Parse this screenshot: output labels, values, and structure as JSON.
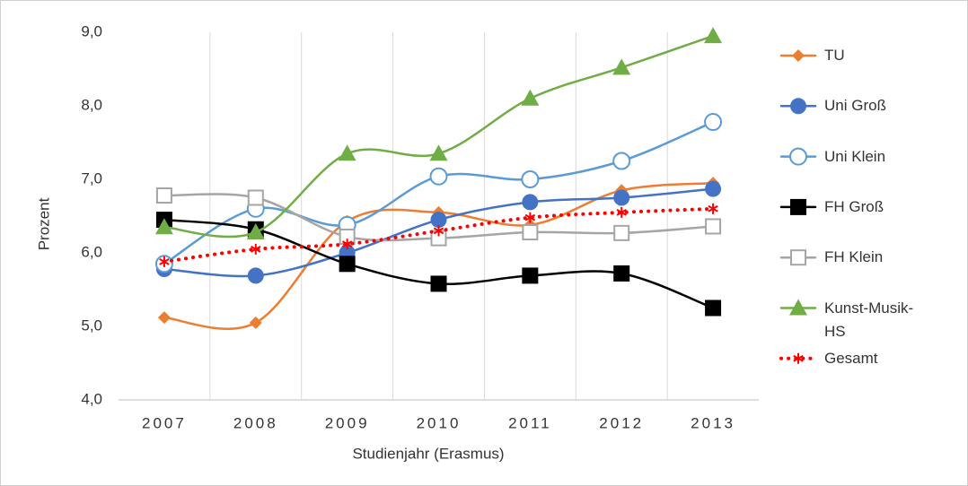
{
  "chart_data": {
    "type": "line",
    "x_label": "Studienjahr (Erasmus)",
    "y_label": "Prozent",
    "categories": [
      "2007",
      "2008",
      "2009",
      "2010",
      "2011",
      "2012",
      "2013"
    ],
    "ylim": [
      4,
      9
    ],
    "yticks": [
      {
        "value": 4,
        "label": "4,0"
      },
      {
        "value": 5,
        "label": "5,0"
      },
      {
        "value": 6,
        "label": "6,0"
      },
      {
        "value": 7,
        "label": "7,0"
      },
      {
        "value": 8,
        "label": "8,0"
      },
      {
        "value": 9,
        "label": "9,0"
      }
    ],
    "grid": true,
    "legend": "right",
    "series": [
      {
        "name": "TU",
        "color": "#ed7d31",
        "marker": "diamond",
        "values": [
          5.12,
          5.05,
          6.43,
          6.55,
          6.38,
          6.85,
          6.95
        ]
      },
      {
        "name": "Uni Groß",
        "color": "#4472c4",
        "marker": "circle",
        "values": [
          5.78,
          5.69,
          6.0,
          6.45,
          6.69,
          6.75,
          6.87
        ]
      },
      {
        "name": "Uni Klein",
        "color": "#5b9bd5",
        "marker": "open-circle",
        "values": [
          5.85,
          6.6,
          6.38,
          7.04,
          7.0,
          7.25,
          7.78
        ]
      },
      {
        "name": "FH Groß",
        "color": "#000000",
        "marker": "square",
        "values": [
          6.45,
          6.32,
          5.85,
          5.58,
          5.69,
          5.72,
          5.25
        ]
      },
      {
        "name": "FH Klein",
        "color": "#a5a5a5",
        "marker": "open-square",
        "values": [
          6.78,
          6.75,
          6.22,
          6.2,
          6.28,
          6.27,
          6.36
        ]
      },
      {
        "name": "Kunst-Musik-HS",
        "color": "#70ad47",
        "marker": "triangle",
        "values": [
          6.35,
          6.28,
          7.35,
          7.35,
          8.1,
          8.52,
          8.95
        ]
      },
      {
        "name": "Gesamt",
        "color": "#ff0000",
        "marker": "asterisk",
        "dash": "dotted",
        "values": [
          5.88,
          6.05,
          6.12,
          6.3,
          6.48,
          6.55,
          6.6
        ]
      }
    ]
  }
}
